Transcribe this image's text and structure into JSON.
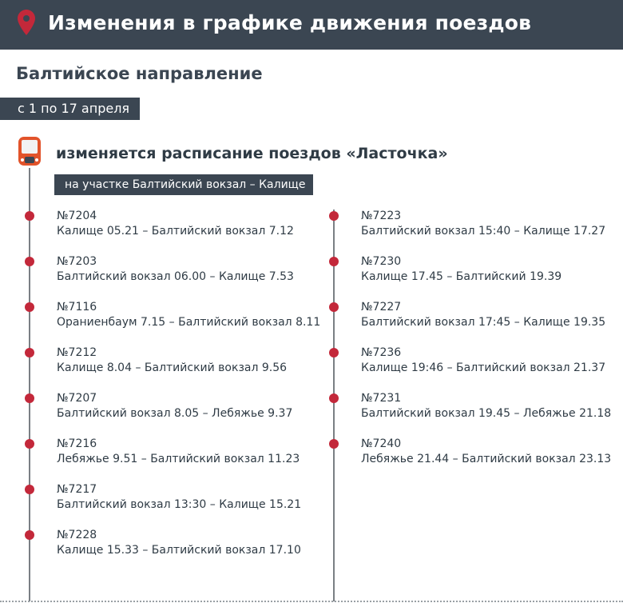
{
  "header": {
    "title": "Изменения в графике движения поездов",
    "icon": "map-pin-icon"
  },
  "subtitle": "Балтийское направление",
  "date_range": "с 1 по 17 апреля",
  "heading": "изменяется расписание поездов «Ласточка»",
  "section": "на участке Балтийский вокзал – Калище",
  "colors": {
    "header": "#3b4652",
    "accent": "#c3283a"
  },
  "left_trains": [
    {
      "number": "№7204",
      "route": "Калище 05.21 – Балтийский вокзал 7.12"
    },
    {
      "number": "№7203",
      "route": "Балтийский вокзал 06.00 – Калище 7.53"
    },
    {
      "number": "№7116",
      "route": "Ораниенбаум 7.15 – Балтийский вокзал 8.11"
    },
    {
      "number": "№7212",
      "route": "Калище 8.04 – Балтийский вокзал 9.56"
    },
    {
      "number": "№7207",
      "route": "Балтийский вокзал 8.05 – Лебяжье 9.37"
    },
    {
      "number": "№7216",
      "route": "Лебяжье 9.51 – Балтийский вокзал 11.23"
    },
    {
      "number": "№7217",
      "route": "Балтийский вокзал 13:30 – Калище 15.21"
    },
    {
      "number": "№7228",
      "route": "Калище 15.33 – Балтийский вокзал 17.10"
    }
  ],
  "right_trains": [
    {
      "number": "№7223",
      "route": "Балтийский вокзал 15:40 – Калище 17.27"
    },
    {
      "number": "№7230",
      "route": "Калище 17.45 – Балтийский 19.39"
    },
    {
      "number": "№7227",
      "route": "Балтийский вокзал 17:45 – Калище 19.35"
    },
    {
      "number": "№7236",
      "route": "Калище 19:46 – Балтийский вокзал 21.37"
    },
    {
      "number": "№7231",
      "route": "Балтийский вокзал 19.45 – Лебяжье 21.18"
    },
    {
      "number": "№7240",
      "route": "Лебяжье 21.44 – Балтийский вокзал 23.13"
    }
  ]
}
